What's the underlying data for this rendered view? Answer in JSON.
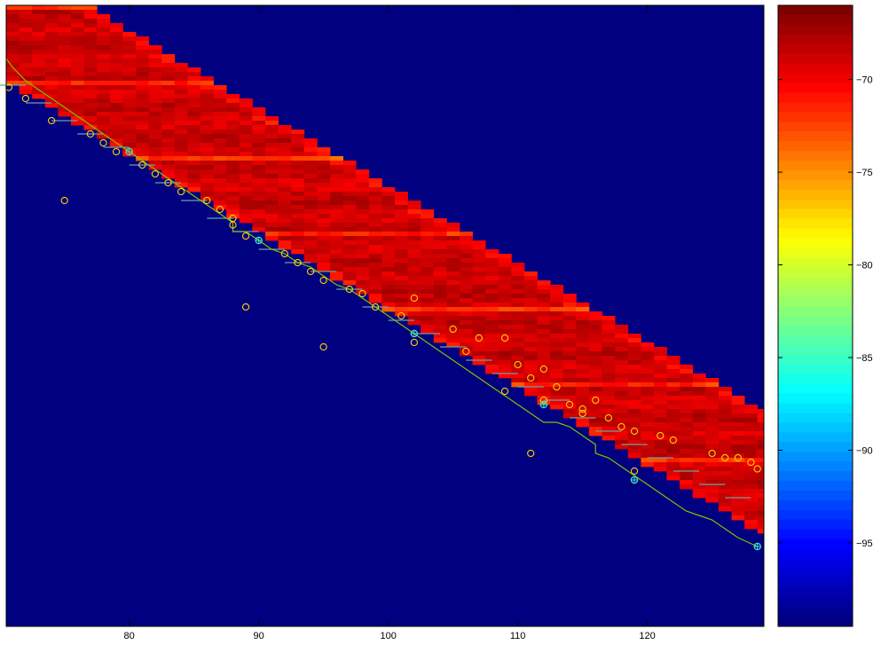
{
  "chart_data": [
    {
      "type": "heatmap",
      "title": "",
      "xlabel": "",
      "ylabel": "",
      "xlim": [
        70.5,
        129
      ],
      "x_ticks": [
        80,
        90,
        100,
        110,
        120
      ],
      "x_tick_labels": [
        "80",
        "90",
        "100",
        "110",
        "120"
      ],
      "background_color": "#000080",
      "colormap": "jet",
      "band": {
        "description_points": [
          [
            70.5,
            3
          ],
          [
            128.5,
            104.5
          ]
        ],
        "half_width_rows": 14,
        "value_range": [
          -70,
          -67
        ]
      },
      "path": {
        "color": "#80c000",
        "points": [
          [
            70.5,
            12
          ],
          [
            71,
            14
          ],
          [
            72,
            17
          ],
          [
            73,
            19
          ],
          [
            74,
            21
          ],
          [
            75,
            23
          ],
          [
            76,
            25
          ],
          [
            77,
            27
          ],
          [
            78,
            29
          ],
          [
            79,
            31
          ],
          [
            80,
            33
          ],
          [
            81,
            35
          ],
          [
            82,
            37
          ],
          [
            83,
            39
          ],
          [
            84,
            41
          ],
          [
            85,
            43
          ],
          [
            86,
            45
          ],
          [
            87,
            47
          ],
          [
            88,
            49
          ],
          [
            88,
            51
          ],
          [
            89,
            51
          ],
          [
            90,
            53
          ],
          [
            91,
            55
          ],
          [
            92,
            56
          ],
          [
            93,
            58
          ],
          [
            94,
            59
          ],
          [
            95,
            61
          ],
          [
            96,
            63
          ],
          [
            97,
            64
          ],
          [
            98,
            66
          ],
          [
            99,
            68
          ],
          [
            100,
            70
          ],
          [
            101,
            72
          ],
          [
            102,
            74
          ],
          [
            103,
            76
          ],
          [
            104,
            78
          ],
          [
            105,
            80
          ],
          [
            106,
            82
          ],
          [
            107,
            84
          ],
          [
            108,
            86
          ],
          [
            109,
            88
          ],
          [
            110,
            90
          ],
          [
            111,
            92
          ],
          [
            112,
            94
          ],
          [
            113,
            94
          ],
          [
            114,
            95
          ],
          [
            115,
            97
          ],
          [
            116,
            99
          ],
          [
            116,
            101
          ],
          [
            117,
            102
          ],
          [
            118,
            104
          ],
          [
            119,
            106
          ],
          [
            120,
            108
          ],
          [
            121,
            110
          ],
          [
            122,
            112
          ],
          [
            123,
            114
          ],
          [
            124,
            115
          ],
          [
            125,
            116
          ],
          [
            126,
            118
          ],
          [
            127,
            120
          ],
          [
            128.5,
            122
          ]
        ]
      },
      "circles": {
        "color": "#ffd200",
        "points": [
          [
            70.7,
            18.5
          ],
          [
            72,
            21
          ],
          [
            74,
            26
          ],
          [
            75,
            44
          ],
          [
            77,
            29
          ],
          [
            78,
            31
          ],
          [
            79,
            33
          ],
          [
            81,
            36
          ],
          [
            82,
            38
          ],
          [
            83,
            40
          ],
          [
            84,
            42
          ],
          [
            86,
            44
          ],
          [
            87,
            46
          ],
          [
            88,
            48
          ],
          [
            88,
            49.5
          ],
          [
            89,
            52
          ],
          [
            89,
            68
          ],
          [
            92,
            56
          ],
          [
            93,
            58
          ],
          [
            94,
            60
          ],
          [
            95,
            62
          ],
          [
            95,
            77
          ],
          [
            97,
            64
          ],
          [
            98,
            65
          ],
          [
            99,
            68
          ],
          [
            101,
            70
          ],
          [
            102,
            66
          ],
          [
            102,
            76
          ],
          [
            105,
            73
          ],
          [
            106,
            78
          ],
          [
            107,
            75
          ],
          [
            109,
            75
          ],
          [
            109,
            87
          ],
          [
            110,
            81
          ],
          [
            111,
            84
          ],
          [
            112,
            82
          ],
          [
            113,
            86
          ],
          [
            112,
            89
          ],
          [
            114,
            90
          ],
          [
            115,
            91
          ],
          [
            115,
            92
          ],
          [
            116,
            89
          ],
          [
            117,
            93
          ],
          [
            118,
            95
          ],
          [
            119,
            96
          ],
          [
            121,
            97
          ],
          [
            122,
            98
          ],
          [
            111,
            101
          ],
          [
            119,
            105
          ],
          [
            125,
            101
          ],
          [
            126,
            102
          ],
          [
            127,
            102
          ],
          [
            128,
            103
          ],
          [
            128.5,
            104.5
          ]
        ]
      },
      "stars": {
        "color": "#40e0c0",
        "points": [
          [
            80,
            33
          ],
          [
            90,
            53
          ],
          [
            102,
            74
          ],
          [
            112,
            90
          ],
          [
            119,
            107
          ],
          [
            128.5,
            122
          ]
        ]
      },
      "segments": {
        "color": "#70a0a0",
        "points": [
          [
            71,
            18
          ],
          [
            73,
            22
          ],
          [
            75,
            26
          ],
          [
            77,
            29
          ],
          [
            79,
            32
          ],
          [
            81,
            36
          ],
          [
            83,
            40
          ],
          [
            85,
            44
          ],
          [
            87,
            48
          ],
          [
            89,
            51
          ],
          [
            91,
            55
          ],
          [
            93,
            58
          ],
          [
            95,
            60
          ],
          [
            97,
            64
          ],
          [
            99,
            68
          ],
          [
            101,
            71
          ],
          [
            103,
            74
          ],
          [
            105,
            77
          ],
          [
            107,
            80
          ],
          [
            109,
            83
          ],
          [
            111,
            86
          ],
          [
            113,
            89
          ],
          [
            115,
            93
          ],
          [
            117,
            96
          ],
          [
            119,
            99
          ],
          [
            121,
            102
          ],
          [
            123,
            105
          ],
          [
            125,
            108
          ],
          [
            127,
            111
          ]
        ]
      }
    },
    {
      "type": "colorbar",
      "colormap": "jet",
      "value_range": [
        -99.5,
        -66
      ],
      "ticks": [
        -70,
        -75,
        -80,
        -85,
        -90,
        -95
      ],
      "tick_labels": [
        "−70",
        "−75",
        "−80",
        "−85",
        "−90",
        "−95"
      ]
    }
  ]
}
